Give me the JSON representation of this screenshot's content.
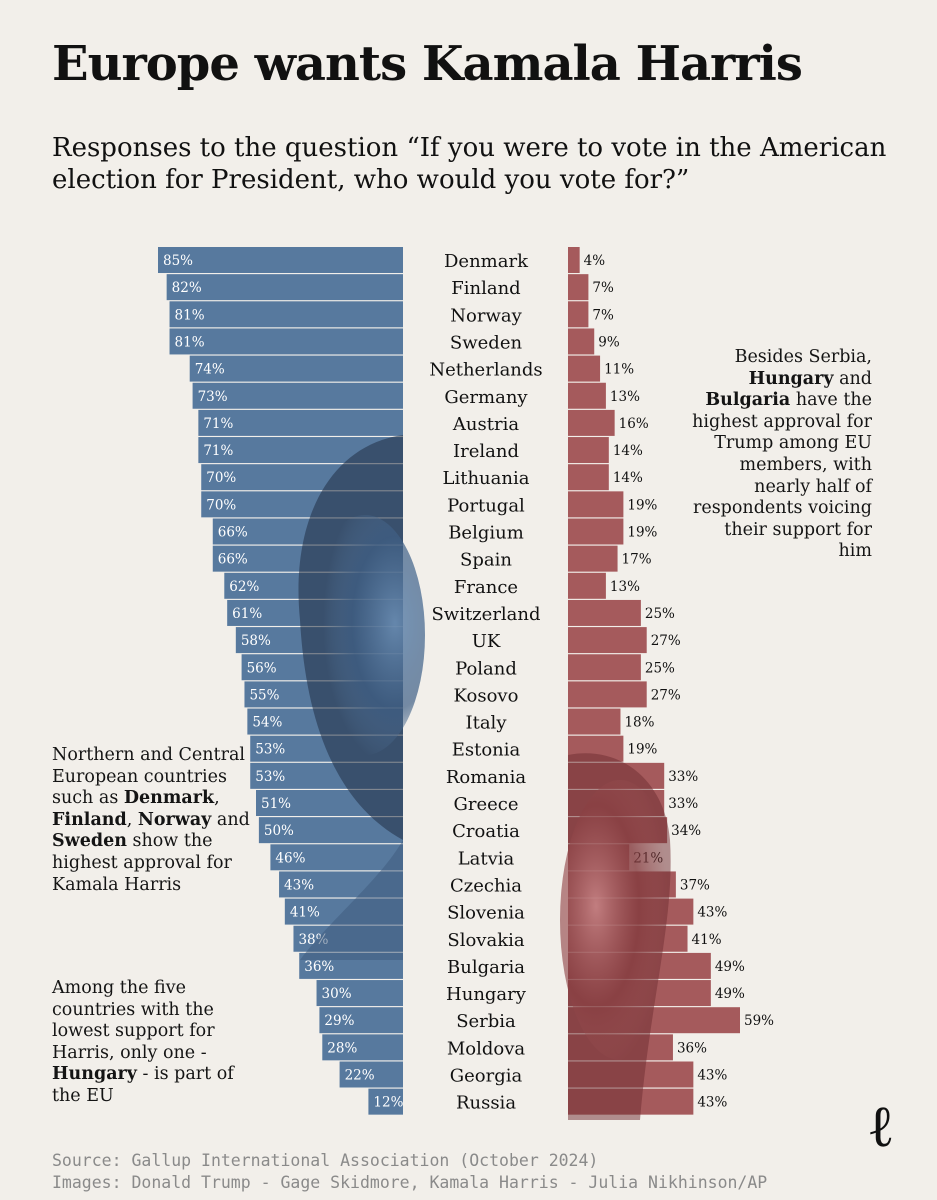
{
  "title": "Europe wants Kamala Harris",
  "subtitle": "Responses to the question “If you were to vote in the American election for President, who would you vote for?”",
  "annotations": {
    "right": {
      "t1": "Besides Serbia, ",
      "b1": "Hungary",
      "t2": " and ",
      "b2": "Bulgaria",
      "t3": " have the highest approval for Trump among EU members, with nearly half of respondents voicing their support for him"
    },
    "left1": {
      "t1": "Northern and Central European countries such as ",
      "b1": "Denmark",
      "t2": ", ",
      "b2": "Finland",
      "t3": ", ",
      "b3": "Norway",
      "t4": " and ",
      "b4": "Sweden",
      "t5": " show the highest approval for Kamala Harris"
    },
    "left2": {
      "t1": "Among the five countries with the lowest support for Harris, only one - ",
      "b1": "Hungary",
      "t2": " - is part of the EU"
    }
  },
  "footer": {
    "source": "Source: Gallup International Association (October 2024)",
    "images": "Images: Donald Trump - Gage Skidmore, Kamala Harris - Julia Nikhinson/AP"
  },
  "logo_text": "ℓ",
  "colors": {
    "harris": "#57799e",
    "trump": "#a55a5c",
    "background": "#f2efea"
  },
  "chart_data": {
    "type": "bar",
    "layout": "diverging",
    "categories": [
      "Denmark",
      "Finland",
      "Norway",
      "Sweden",
      "Netherlands",
      "Germany",
      "Austria",
      "Ireland",
      "Lithuania",
      "Portugal",
      "Belgium",
      "Spain",
      "France",
      "Switzerland",
      "UK",
      "Poland",
      "Kosovo",
      "Italy",
      "Estonia",
      "Romania",
      "Greece",
      "Croatia",
      "Latvia",
      "Czechia",
      "Slovenia",
      "Slovakia",
      "Bulgaria",
      "Hungary",
      "Serbia",
      "Moldova",
      "Georgia",
      "Russia"
    ],
    "series": [
      {
        "values": [
          85,
          82,
          81,
          81,
          74,
          73,
          71,
          71,
          70,
          70,
          66,
          66,
          62,
          61,
          58,
          56,
          55,
          54,
          53,
          53,
          51,
          50,
          46,
          43,
          41,
          38,
          36,
          30,
          29,
          28,
          22,
          12
        ],
        "color": "#57799e"
      },
      {
        "values": [
          4,
          7,
          7,
          9,
          11,
          13,
          16,
          14,
          14,
          19,
          19,
          17,
          13,
          25,
          27,
          25,
          27,
          18,
          19,
          33,
          33,
          34,
          21,
          37,
          43,
          41,
          49,
          49,
          59,
          36,
          43,
          43
        ],
        "color": "#a55a5c"
      }
    ],
    "unit": "%"
  }
}
